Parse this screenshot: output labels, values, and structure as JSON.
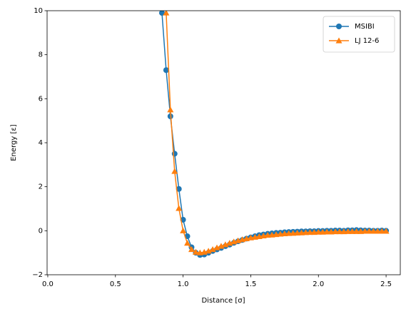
{
  "chart_data": {
    "type": "line",
    "xlabel": "Distance [σ]",
    "ylabel": "Energy [ε]",
    "x": [
      0.84375,
      0.875,
      0.90625,
      0.9375,
      0.96875,
      1,
      1.03125,
      1.0625,
      1.09375,
      1.125,
      1.15625,
      1.1875,
      1.21875,
      1.25,
      1.28125,
      1.3125,
      1.34375,
      1.375,
      1.40625,
      1.4375,
      1.46875,
      1.5,
      1.53125,
      1.5625,
      1.59375,
      1.625,
      1.65625,
      1.6875,
      1.71875,
      1.75,
      1.78125,
      1.8125,
      1.84375,
      1.875,
      1.90625,
      1.9375,
      1.96875,
      2,
      2.03125,
      2.0625,
      2.09375,
      2.125,
      2.15625,
      2.1875,
      2.21875,
      2.25,
      2.28125,
      2.3125,
      2.34375,
      2.375,
      2.40625,
      2.4375,
      2.46875,
      2.5
    ],
    "series": [
      {
        "name": "MSIBI",
        "color": "#1f77b4",
        "marker": "circle",
        "values": [
          9.9,
          7.3,
          5.2,
          3.5,
          1.9,
          0.5,
          -0.25,
          -0.75,
          -1.0,
          -1.1,
          -1.08,
          -1.0,
          -0.92,
          -0.85,
          -0.78,
          -0.7,
          -0.63,
          -0.55,
          -0.48,
          -0.42,
          -0.36,
          -0.3,
          -0.25,
          -0.2,
          -0.17,
          -0.14,
          -0.12,
          -0.1,
          -0.09,
          -0.07,
          -0.06,
          -0.05,
          -0.04,
          -0.03,
          -0.03,
          -0.02,
          -0.02,
          -0.01,
          -0.01,
          0,
          0,
          0.01,
          0.01,
          0,
          0.02,
          0.02,
          0.03,
          0.02,
          0.01,
          0.01,
          0,
          0,
          0.01,
          0
        ]
      },
      {
        "name": "LJ 12-6",
        "color": "#ff7f0e",
        "marker": "triangle",
        "values": [
          null,
          9.9,
          5.5,
          2.7,
          1.02,
          0,
          -0.56,
          -0.85,
          -0.97,
          -1.0,
          -0.97,
          -0.92,
          -0.85,
          -0.77,
          -0.7,
          -0.63,
          -0.56,
          -0.5,
          -0.45,
          -0.4,
          -0.36,
          -0.32,
          -0.29,
          -0.26,
          -0.23,
          -0.2,
          -0.19,
          -0.17,
          -0.15,
          -0.13,
          -0.12,
          -0.11,
          -0.1,
          -0.09,
          -0.08,
          -0.07,
          -0.07,
          -0.06,
          -0.06,
          -0.05,
          -0.05,
          -0.04,
          -0.04,
          -0.04,
          -0.03,
          -0.03,
          -0.03,
          -0.03,
          -0.02,
          -0.02,
          -0.02,
          -0.02,
          -0.02,
          -0.02
        ]
      }
    ],
    "xlim": [
      -0.005,
      2.605
    ],
    "ylim": [
      -2,
      10
    ],
    "xticks": [
      {
        "value": 0,
        "label": "0.0"
      },
      {
        "value": 0.5,
        "label": "0.5"
      },
      {
        "value": 1,
        "label": "1.0"
      },
      {
        "value": 1.5,
        "label": "1.5"
      },
      {
        "value": 2,
        "label": "2.0"
      },
      {
        "value": 2.5,
        "label": "2.5"
      }
    ],
    "yticks": [
      {
        "value": -2,
        "label": "−2"
      },
      0,
      2,
      4,
      6,
      8,
      10
    ],
    "legend": "upper right",
    "grid": false
  }
}
